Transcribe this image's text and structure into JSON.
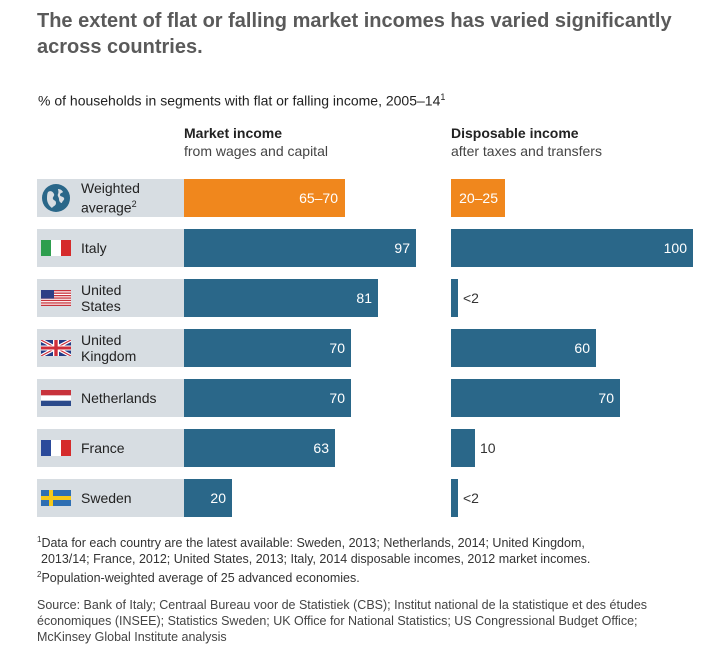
{
  "title": "The extent of flat or falling market incomes has varied significantly across countries.",
  "subtitle": "% of households in segments with flat or falling income, 2005–14",
  "subtitle_note": "1",
  "columns": {
    "market": {
      "heading": "Market income",
      "sub": "from wages and capital"
    },
    "disposable": {
      "heading": "Disposable income",
      "sub": "after taxes and transfers"
    }
  },
  "colors": {
    "orange": "#f0871d",
    "blue": "#2a6789",
    "label_bg": "#d7dde2"
  },
  "chart_data": {
    "type": "bar",
    "title": "% of households in segments with flat or falling income, 2005–14",
    "categories": [
      "Weighted average",
      "Italy",
      "United States",
      "United Kingdom",
      "Netherlands",
      "France",
      "Sweden"
    ],
    "series": [
      {
        "name": "Market income",
        "values": [
          67.5,
          97,
          81,
          70,
          70,
          63,
          20
        ],
        "labels": [
          "65–70",
          "97",
          "81",
          "70",
          "70",
          "63",
          "20"
        ]
      },
      {
        "name": "Disposable income",
        "values": [
          22.5,
          100,
          2,
          60,
          70,
          10,
          2
        ],
        "labels": [
          "20–25",
          "100",
          "<2",
          "60",
          "70",
          "10",
          "<2"
        ]
      }
    ],
    "xlim": [
      0,
      100
    ]
  },
  "rows": [
    {
      "label_line1": "Weighted",
      "label_line2": "average",
      "note": "2",
      "icon": "globe-icon",
      "highlight": true
    },
    {
      "label_line1": "Italy",
      "label_line2": "",
      "note": "",
      "icon": "italy-flag-icon",
      "highlight": false
    },
    {
      "label_line1": "United",
      "label_line2": "States",
      "note": "",
      "icon": "us-flag-icon",
      "highlight": false
    },
    {
      "label_line1": "United",
      "label_line2": "Kingdom",
      "note": "",
      "icon": "uk-flag-icon",
      "highlight": false
    },
    {
      "label_line1": "Netherlands",
      "label_line2": "",
      "note": "",
      "icon": "netherlands-flag-icon",
      "highlight": false
    },
    {
      "label_line1": "France",
      "label_line2": "",
      "note": "",
      "icon": "france-flag-icon",
      "highlight": false
    },
    {
      "label_line1": "Sweden",
      "label_line2": "",
      "note": "",
      "icon": "sweden-flag-icon",
      "highlight": false
    }
  ],
  "footnotes": {
    "note1_mark": "1",
    "note1": "Data for each country are the latest available: Sweden, 2013; Netherlands, 2014; United Kingdom,",
    "note1_cont": "2013/14; France, 2012; United States, 2013; Italy, 2014 disposable incomes, 2012 market incomes.",
    "note2_mark": "2",
    "note2": "Population-weighted average of 25 advanced economies."
  },
  "source": "Source: Bank of Italy; Centraal Bureau voor de Statistiek (CBS); Institut national de la statistique et des études économiques (INSEE); Statistics Sweden; UK Office for National Statistics; US Congressional Budget Office; McKinsey Global Institute analysis"
}
